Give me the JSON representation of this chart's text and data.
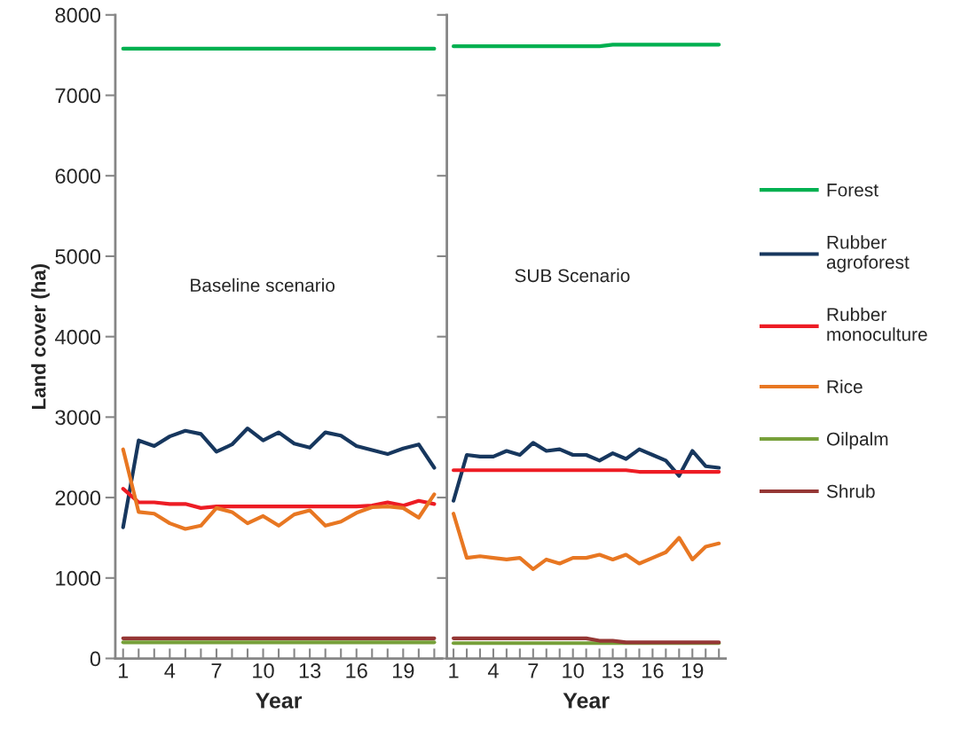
{
  "chart_data": [
    {
      "type": "line",
      "ylabel": "Land cover (ha)",
      "xlabel": "Year",
      "annotations": [
        "Baseline scenario"
      ],
      "xlim": [
        0.5,
        21.5
      ],
      "ylim": [
        0,
        8000
      ],
      "yticks": [
        0,
        1000,
        2000,
        3000,
        4000,
        5000,
        6000,
        7000,
        8000
      ],
      "xticks": [
        1,
        {
          "value": 2,
          "label": null
        },
        {
          "value": 3,
          "label": null
        },
        4,
        {
          "value": 5,
          "label": null
        },
        {
          "value": 6,
          "label": null
        },
        7,
        {
          "value": 8,
          "label": null
        },
        {
          "value": 9,
          "label": null
        },
        10,
        {
          "value": 11,
          "label": null
        },
        {
          "value": 12,
          "label": null
        },
        13,
        {
          "value": 14,
          "label": null
        },
        {
          "value": 15,
          "label": null
        },
        16,
        {
          "value": 17,
          "label": null
        },
        {
          "value": 18,
          "label": null
        },
        19,
        {
          "value": 20,
          "label": null
        },
        {
          "value": 21,
          "label": null
        }
      ],
      "x": [
        1,
        2,
        3,
        4,
        5,
        6,
        7,
        8,
        9,
        10,
        11,
        12,
        13,
        14,
        15,
        16,
        17,
        18,
        19,
        20,
        21
      ],
      "grid": false,
      "legend": "right",
      "marker": "none",
      "series": [
        {
          "name": "Forest",
          "color": "#00b050",
          "values": [
            7580,
            7580,
            7580,
            7580,
            7580,
            7580,
            7580,
            7580,
            7580,
            7580,
            7580,
            7580,
            7580,
            7580,
            7580,
            7580,
            7580,
            7580,
            7580,
            7580,
            7580
          ]
        },
        {
          "name": "Rubber\nagroforest",
          "color": "#17375e",
          "values": [
            1630,
            2710,
            2640,
            2760,
            2830,
            2790,
            2570,
            2660,
            2860,
            2710,
            2810,
            2670,
            2620,
            2810,
            2770,
            2640,
            2590,
            2540,
            2610,
            2660,
            2370
          ]
        },
        {
          "name": "Rubber\nmonoculture",
          "color": "#ed1c24",
          "values": [
            2110,
            1940,
            1940,
            1920,
            1920,
            1870,
            1890,
            1890,
            1890,
            1890,
            1890,
            1890,
            1890,
            1890,
            1890,
            1890,
            1900,
            1940,
            1900,
            1960,
            1920
          ]
        },
        {
          "name": "Rice",
          "color": "#e87722",
          "values": [
            2600,
            1820,
            1800,
            1680,
            1610,
            1650,
            1870,
            1820,
            1680,
            1770,
            1650,
            1790,
            1840,
            1650,
            1700,
            1810,
            1880,
            1890,
            1870,
            1750,
            2040
          ]
        },
        {
          "name": "Oilpalm",
          "color": "#77a03a",
          "values": [
            200,
            200,
            200,
            200,
            200,
            200,
            200,
            200,
            200,
            200,
            200,
            200,
            200,
            200,
            200,
            200,
            200,
            200,
            200,
            200,
            200
          ]
        },
        {
          "name": "Shrub",
          "color": "#953735",
          "values": [
            250,
            250,
            250,
            250,
            250,
            250,
            250,
            250,
            250,
            250,
            250,
            250,
            250,
            250,
            250,
            250,
            250,
            250,
            250,
            250,
            250
          ]
        }
      ]
    },
    {
      "type": "line",
      "xlabel": "Year",
      "annotations": [
        "SUB Scenario"
      ],
      "xlim": [
        0.5,
        21.5
      ],
      "ylim": [
        0,
        8000
      ],
      "tick_labels": "x",
      "xticks": [
        1,
        {
          "value": 2,
          "label": null
        },
        {
          "value": 3,
          "label": null
        },
        4,
        {
          "value": 5,
          "label": null
        },
        {
          "value": 6,
          "label": null
        },
        7,
        {
          "value": 8,
          "label": null
        },
        {
          "value": 9,
          "label": null
        },
        10,
        {
          "value": 11,
          "label": null
        },
        {
          "value": 12,
          "label": null
        },
        13,
        {
          "value": 14,
          "label": null
        },
        {
          "value": 15,
          "label": null
        },
        16,
        {
          "value": 17,
          "label": null
        },
        {
          "value": 18,
          "label": null
        },
        19,
        {
          "value": 20,
          "label": null
        },
        {
          "value": 21,
          "label": null
        }
      ],
      "yticks": [
        0,
        1000,
        2000,
        3000,
        4000,
        5000,
        6000,
        7000,
        8000
      ],
      "x": [
        1,
        2,
        3,
        4,
        5,
        6,
        7,
        8,
        9,
        10,
        11,
        12,
        13,
        14,
        15,
        16,
        17,
        18,
        19,
        20,
        21
      ],
      "grid": false,
      "marker": "none",
      "series": [
        {
          "color": "#00b050",
          "values": [
            7610,
            7610,
            7610,
            7610,
            7610,
            7610,
            7610,
            7610,
            7610,
            7610,
            7610,
            7610,
            7630,
            7630,
            7630,
            7630,
            7630,
            7630,
            7630,
            7630,
            7630
          ]
        },
        {
          "color": "#17375e",
          "values": [
            1960,
            2530,
            2510,
            2510,
            2580,
            2530,
            2680,
            2580,
            2600,
            2530,
            2530,
            2460,
            2550,
            2480,
            2600,
            2530,
            2460,
            2270,
            2580,
            2390,
            2370
          ]
        },
        {
          "color": "#ed1c24",
          "values": [
            2340,
            2340,
            2340,
            2340,
            2340,
            2340,
            2340,
            2340,
            2340,
            2340,
            2340,
            2340,
            2340,
            2340,
            2320,
            2320,
            2320,
            2320,
            2320,
            2320,
            2320
          ]
        },
        {
          "color": "#e87722",
          "values": [
            1800,
            1250,
            1270,
            1250,
            1230,
            1250,
            1110,
            1230,
            1180,
            1250,
            1250,
            1290,
            1230,
            1290,
            1180,
            1250,
            1320,
            1500,
            1230,
            1390,
            1430
          ]
        },
        {
          "color": "#77a03a",
          "values": [
            190,
            190,
            190,
            190,
            190,
            190,
            190,
            190,
            190,
            190,
            190,
            190,
            190,
            190,
            190,
            190,
            190,
            190,
            190,
            190,
            190
          ]
        },
        {
          "color": "#953735",
          "values": [
            250,
            250,
            250,
            250,
            250,
            250,
            250,
            250,
            250,
            250,
            250,
            220,
            220,
            200,
            200,
            200,
            200,
            200,
            200,
            200,
            200
          ]
        }
      ]
    }
  ]
}
